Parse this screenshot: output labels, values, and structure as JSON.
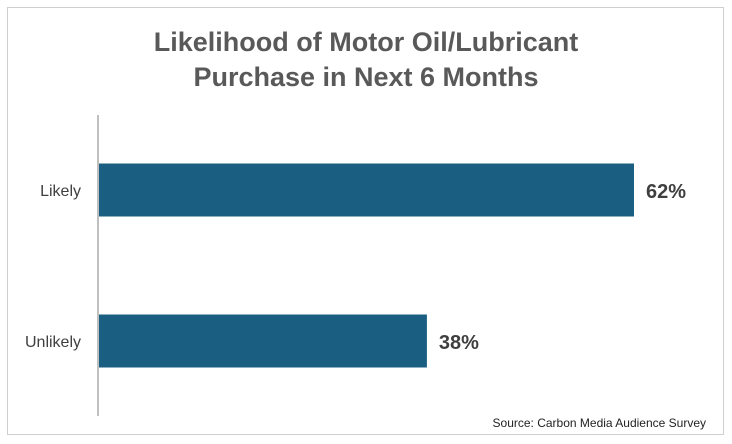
{
  "title_lines": [
    "Likelihood of Motor Oil/Lubricant",
    "Purchase in Next 6 Months"
  ],
  "source": "Source: Carbon Media Audience Survey",
  "colors": {
    "bar": "#1a5f82",
    "axis": "#bfbfbf",
    "title": "#595959",
    "label": "#3f3f3f"
  },
  "chart_data": {
    "type": "bar",
    "orientation": "horizontal",
    "title": "Likelihood of Motor Oil/Lubricant Purchase in Next 6 Months",
    "categories": [
      "Likely",
      "Unlikely"
    ],
    "values": [
      62,
      38
    ],
    "value_labels": [
      "62%",
      "38%"
    ],
    "xlim": [
      0,
      100
    ],
    "grid": false,
    "legend": "none"
  }
}
